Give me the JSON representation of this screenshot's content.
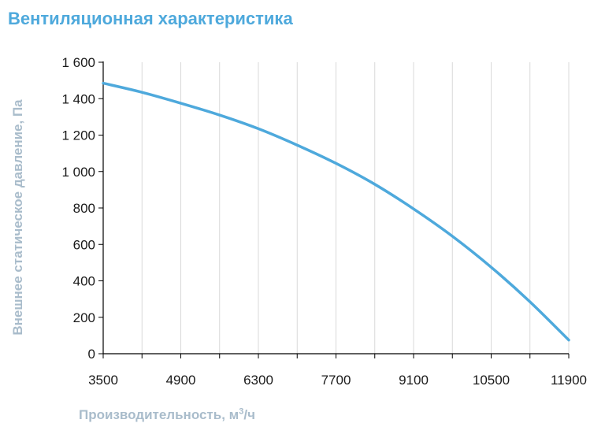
{
  "chart_data": {
    "type": "line",
    "title": "Вентиляционная характеристика",
    "xlabel": {
      "prefix": "Производительность, м",
      "superscript": "3",
      "suffix": "/ч"
    },
    "ylabel": "Внешнее статическое давление, Па",
    "x_ticks": [
      3500,
      4900,
      6300,
      7700,
      9100,
      10500,
      11900
    ],
    "x_tick_labels": [
      "3500",
      "4900",
      "6300",
      "7700",
      "9100",
      "10500",
      "11900"
    ],
    "y_ticks": [
      0,
      200,
      400,
      600,
      800,
      1000,
      1200,
      1400,
      1600
    ],
    "y_tick_labels": [
      "0",
      "200",
      "400",
      "600",
      "800",
      "1 000",
      "1 200",
      "1 400",
      "1 600"
    ],
    "xlim": [
      3500,
      11900
    ],
    "ylim": [
      0,
      1600
    ],
    "grid": true,
    "series": [
      {
        "color": "#4ea9dc",
        "x": [
          3500,
          4200,
          4900,
          5600,
          6300,
          7000,
          7700,
          8400,
          9100,
          9800,
          10500,
          11200,
          11900
        ],
        "y": [
          1485,
          1435,
          1375,
          1310,
          1235,
          1145,
          1045,
          930,
          795,
          645,
          475,
          285,
          75
        ]
      }
    ]
  }
}
